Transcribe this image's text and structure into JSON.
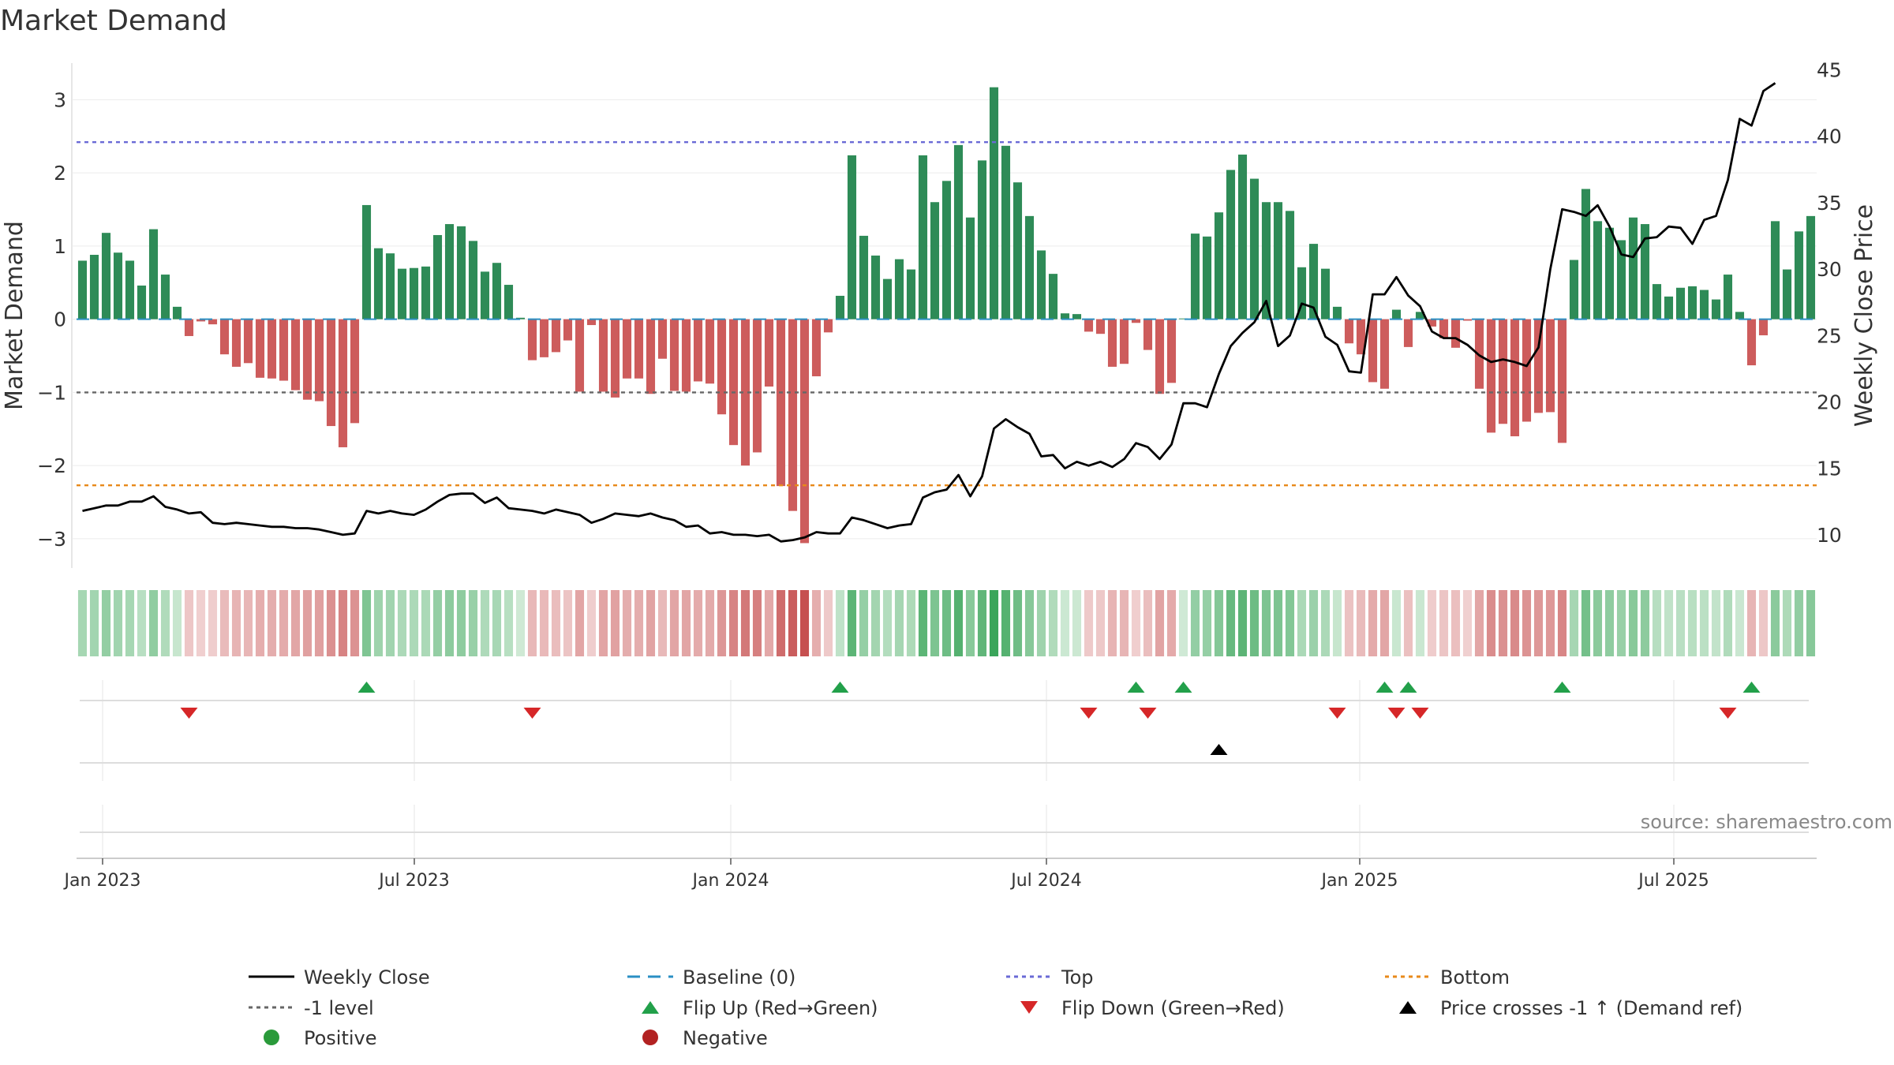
{
  "chart_data": {
    "type": "bar",
    "title": "Market Demand",
    "ylabel": "Market Demand",
    "y2label": "Weekly Close Price",
    "ylim": [
      -3.4,
      3.5
    ],
    "y2lim": [
      7.5,
      45.5
    ],
    "yticks": [
      "−3",
      "−2",
      "−1",
      "0",
      "1",
      "2",
      "3"
    ],
    "y2ticks": [
      "10",
      "15",
      "20",
      "25",
      "30",
      "35",
      "40",
      "45"
    ],
    "x_labels": [
      "Jan 2023",
      "Jul 2023",
      "Jan 2024",
      "Jul 2024",
      "Jan 2025",
      "Jul 2025"
    ],
    "levels": {
      "top": 2.42,
      "minus_one": -1.0,
      "bottom": -2.27,
      "baseline": 0
    },
    "demand": [
      0.8,
      0.88,
      1.18,
      0.91,
      0.8,
      0.46,
      1.23,
      0.61,
      0.17,
      -0.23,
      -0.03,
      -0.07,
      -0.48,
      -0.65,
      -0.6,
      -0.8,
      -0.81,
      -0.84,
      -0.97,
      -1.1,
      -1.12,
      -1.46,
      -1.75,
      -1.42,
      1.56,
      0.97,
      0.9,
      0.69,
      0.7,
      0.72,
      1.15,
      1.3,
      1.27,
      1.07,
      0.65,
      0.77,
      0.47,
      0.02,
      -0.56,
      -0.52,
      -0.45,
      -0.29,
      -0.99,
      -0.08,
      -0.99,
      -1.07,
      -0.81,
      -0.81,
      -1.02,
      -0.54,
      -0.98,
      -0.99,
      -0.85,
      -0.88,
      -1.3,
      -1.72,
      -2.0,
      -1.82,
      -0.92,
      -2.28,
      -2.62,
      -3.06,
      -0.78,
      -0.18,
      0.32,
      2.24,
      1.14,
      0.87,
      0.55,
      0.82,
      0.68,
      2.24,
      1.6,
      1.89,
      2.38,
      1.39,
      2.17,
      3.17,
      2.37,
      1.87,
      1.41,
      0.94,
      0.62,
      0.08,
      0.07,
      -0.17,
      -0.2,
      -0.65,
      -0.61,
      -0.05,
      -0.42,
      -1.02,
      -0.87,
      0.01,
      1.17,
      1.13,
      1.46,
      2.04,
      2.25,
      1.92,
      1.6,
      1.6,
      1.48,
      0.71,
      1.03,
      0.69,
      0.17,
      -0.33,
      -0.48,
      -0.86,
      -0.95,
      0.13,
      -0.38,
      0.1,
      -0.1,
      -0.26,
      -0.39,
      -0.02,
      -0.95,
      -1.55,
      -1.43,
      -1.6,
      -1.4,
      -1.28,
      -1.27,
      -1.69,
      0.81,
      1.78,
      1.34,
      1.25,
      1.08,
      1.39,
      1.3,
      0.48,
      0.31,
      0.43,
      0.45,
      0.4,
      0.27,
      0.61,
      0.1,
      -0.63,
      -0.22,
      1.34,
      0.68,
      1.2,
      1.41
    ],
    "weekly_close": [
      11.8,
      12.0,
      12.2,
      12.2,
      12.5,
      12.5,
      12.9,
      12.1,
      11.9,
      11.6,
      11.7,
      10.9,
      10.8,
      10.9,
      10.8,
      10.7,
      10.6,
      10.6,
      10.5,
      10.5,
      10.4,
      10.2,
      10.0,
      10.1,
      11.8,
      11.6,
      11.8,
      11.6,
      11.5,
      11.9,
      12.5,
      13.0,
      13.1,
      13.1,
      12.4,
      12.8,
      12.0,
      11.9,
      11.8,
      11.6,
      11.9,
      11.7,
      11.5,
      10.9,
      11.2,
      11.6,
      11.5,
      11.4,
      11.6,
      11.3,
      11.1,
      10.6,
      10.7,
      10.1,
      10.2,
      10.0,
      10.0,
      9.9,
      10.0,
      9.5,
      9.6,
      9.8,
      10.2,
      10.1,
      10.1,
      11.3,
      11.1,
      10.8,
      10.5,
      10.7,
      10.8,
      12.8,
      13.2,
      13.4,
      14.5,
      12.9,
      14.4,
      18.0,
      18.7,
      18.1,
      17.6,
      15.9,
      16.0,
      15.0,
      15.5,
      15.2,
      15.5,
      15.1,
      15.7,
      16.9,
      16.6,
      15.7,
      16.8,
      19.9,
      19.9,
      19.6,
      22.1,
      24.2,
      25.2,
      26.0,
      27.6,
      24.2,
      25.0,
      27.4,
      27.1,
      24.9,
      24.3,
      22.3,
      22.2,
      28.1,
      28.1,
      29.4,
      28.0,
      27.2,
      25.3,
      24.8,
      24.8,
      24.3,
      23.5,
      23.0,
      23.2,
      23.0,
      22.7,
      24.1,
      30.0,
      34.5,
      34.3,
      34.0,
      34.8,
      33.2,
      31.1,
      30.9,
      32.3,
      32.4,
      33.2,
      33.1,
      31.9,
      33.7,
      34.0,
      36.7,
      41.3,
      40.8,
      43.4,
      44.0
    ],
    "flip_up_weeks": [
      24,
      64,
      89,
      93,
      110,
      112,
      125,
      141
    ],
    "flip_down_weeks": [
      9,
      38,
      85,
      90,
      106,
      111,
      113,
      139
    ],
    "price_cross_weeks": [
      96
    ],
    "legend": [
      "Weekly Close",
      "Baseline (0)",
      "Top",
      "Bottom",
      "-1 level",
      "Flip Up (Red→Green)",
      "Flip Down (Green→Red)",
      "Price crosses -1 ↑ (Demand ref)",
      "Positive",
      "Negative"
    ],
    "source": "source: sharemaestro.com",
    "colors": {
      "positive": "#2e8b57",
      "negative": "#cd5c5c",
      "line": "#000000",
      "top": "#6a6ad6",
      "bottom": "#e8891a",
      "minus_one": "#666666",
      "baseline": "#2a8fc4",
      "flip_up": "#22a04a",
      "flip_down": "#d62728"
    }
  }
}
